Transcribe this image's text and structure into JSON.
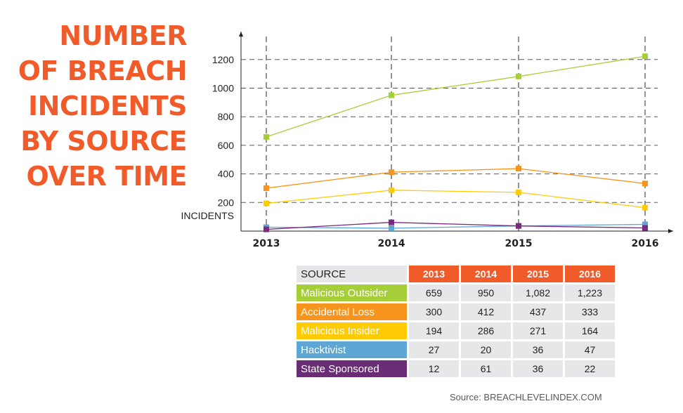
{
  "title_lines": [
    "NUMBER",
    "OF BREACH",
    "INCIDENTS",
    "BY SOURCE",
    "OVER TIME"
  ],
  "colors": {
    "title": "#f15a29",
    "header_bg": "#f15a29",
    "cell_bg": "#e6e7e8",
    "grid": "#58595b"
  },
  "chart_data": {
    "type": "line",
    "x": [
      "2013",
      "2014",
      "2015",
      "2016"
    ],
    "ylabel": "INCIDENTS",
    "yticks": [
      200,
      400,
      600,
      800,
      1000,
      1200
    ],
    "ylim": [
      0,
      1300
    ],
    "grid": true,
    "series": [
      {
        "name": "Malicious Outsider",
        "color": "#a6ce39",
        "values": [
          659,
          950,
          1082,
          1223
        ]
      },
      {
        "name": "Accidental Loss",
        "color": "#f7941d",
        "values": [
          300,
          412,
          437,
          333
        ]
      },
      {
        "name": "Malicious Insider",
        "color": "#ffcb05",
        "values": [
          194,
          286,
          271,
          164
        ]
      },
      {
        "name": "Hacktivist",
        "color": "#5ea7d4",
        "values": [
          27,
          20,
          36,
          47
        ]
      },
      {
        "name": "State Sponsored",
        "color": "#7b2a7f",
        "values": [
          12,
          61,
          36,
          22
        ]
      }
    ]
  },
  "table": {
    "source_header": "SOURCE",
    "years": [
      "2013",
      "2014",
      "2015",
      "2016"
    ],
    "rows": [
      {
        "source": "Malicious Outsider",
        "color": "#a6ce39",
        "values": [
          "659",
          "950",
          "1,082",
          "1,223"
        ]
      },
      {
        "source": "Accidental Loss",
        "color": "#f7941d",
        "values": [
          "300",
          "412",
          "437",
          "333"
        ]
      },
      {
        "source": "Malicious Insider",
        "color": "#ffcb05",
        "values": [
          "194",
          "286",
          "271",
          "164"
        ]
      },
      {
        "source": "Hacktivist",
        "color": "#5ea7d4",
        "values": [
          "27",
          "20",
          "36",
          "47"
        ]
      },
      {
        "source": "State Sponsored",
        "color": "#6a2c75",
        "values": [
          "12",
          "61",
          "36",
          "22"
        ]
      }
    ]
  },
  "source_note": "Source: BREACHLEVELINDEX.COM"
}
